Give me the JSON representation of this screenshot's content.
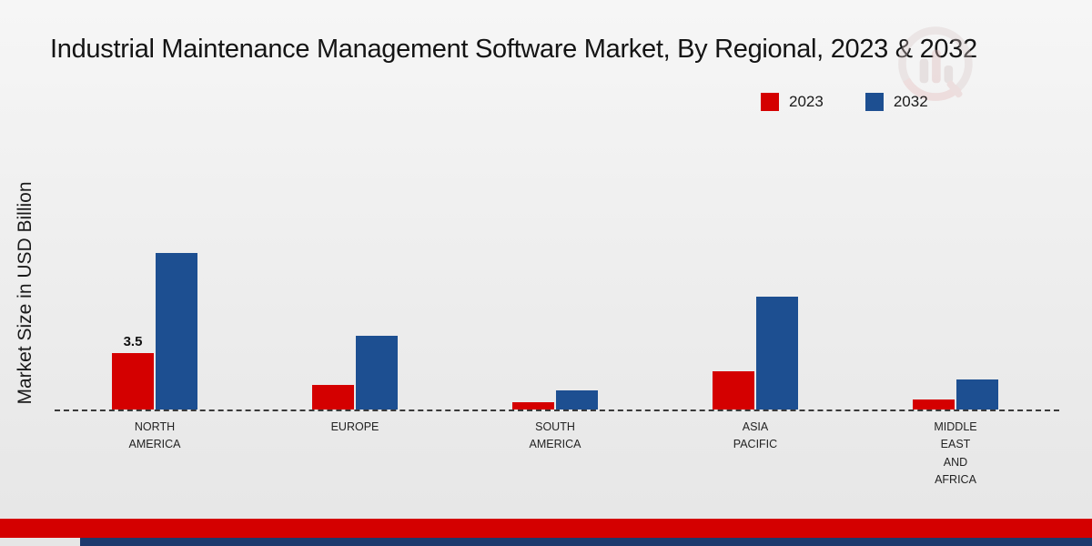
{
  "title": "Industrial Maintenance Management Software Market, By Regional, 2023 & 2032",
  "ylabel": "Market Size in USD Billion",
  "colors": {
    "series_2023": "#d40000",
    "series_2032": "#1d4f91",
    "footer_red": "#d40000",
    "footer_navy": "#1d3a6e",
    "baseline": "#3a3a3a"
  },
  "chart_data": {
    "type": "bar",
    "title": "Industrial Maintenance Management Software Market, By Regional, 2023 & 2032",
    "xlabel": "",
    "ylabel": "Market Size in USD Billion",
    "categories": [
      "NORTH AMERICA",
      "EUROPE",
      "SOUTH AMERICA",
      "ASIA PACIFIC",
      "MIDDLE EAST AND AFRICA"
    ],
    "category_display": [
      "NORTH\nAMERICA",
      "EUROPE",
      "SOUTH\nAMERICA",
      "ASIA\nPACIFIC",
      "MIDDLE\nEAST\nAND\nAFRICA"
    ],
    "series": [
      {
        "name": "2023",
        "color": "#d40000",
        "values": [
          3.5,
          1.5,
          0.45,
          2.4,
          0.6
        ]
      },
      {
        "name": "2032",
        "color": "#1d4f91",
        "values": [
          9.7,
          4.6,
          1.2,
          7.0,
          1.85
        ]
      }
    ],
    "bar_labels": [
      {
        "category_index": 0,
        "series_index": 0,
        "text": "3.5"
      }
    ],
    "ylim": [
      0,
      10
    ],
    "grid": false,
    "legend_position": "top-right",
    "baseline_style": "dashed"
  }
}
